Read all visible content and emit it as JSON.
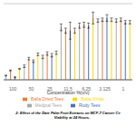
{
  "chart_data": {
    "type": "bar",
    "title": "2: Effect of the Date Palm Fruit Extracts on MCF-7 Cancer Ce\n        Viability at 24 Hours.",
    "xlabel": "Concentration %(v/v)",
    "categories": [
      "100",
      "50",
      "25",
      "11.5",
      "6.25",
      "3.125",
      "1"
    ],
    "series": [
      {
        "name": "Medjoal Tees",
        "color": "#A9A9A9",
        "values": [
          5,
          16,
          27,
          62,
          64,
          70,
          70
        ],
        "errors": [
          0.5,
          1.5,
          2,
          4,
          3,
          2,
          2
        ]
      },
      {
        "name": "Balla Dried Tees",
        "color": "#ED7D31",
        "values": [
          11,
          25,
          31,
          58,
          65,
          71,
          71
        ],
        "errors": [
          0.5,
          1.5,
          2,
          3,
          3,
          2,
          2
        ]
      },
      {
        "name": "Rudy Tees",
        "color": "#4472C4",
        "values": [
          3,
          22,
          29,
          58,
          64,
          73,
          68
        ],
        "errors": [
          0.5,
          1.5,
          2,
          10,
          3,
          4,
          2
        ]
      },
      {
        "name": "Batta Khlas",
        "color": "#FFD700",
        "values": [
          13,
          30,
          32,
          58,
          73,
          71,
          68
        ],
        "errors": [
          0.5,
          1.5,
          2,
          3,
          7,
          2,
          2
        ]
      }
    ],
    "ylim": [
      0,
      90
    ],
    "yticks": [
      0,
      30,
      60,
      90
    ],
    "grid": true,
    "tick_labels": "x",
    "legend": "bottom"
  }
}
